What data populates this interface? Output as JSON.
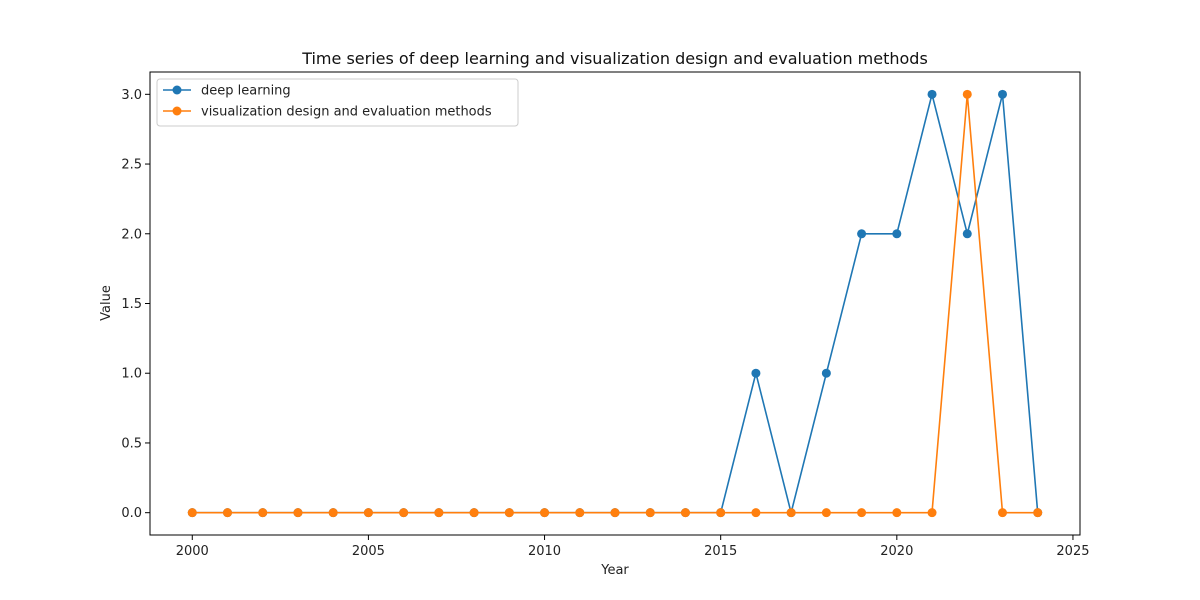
{
  "chart_data": {
    "type": "line",
    "title": "Time series of deep learning and visualization design and evaluation methods",
    "xlabel": "Year",
    "ylabel": "Value",
    "x": [
      2000,
      2001,
      2002,
      2003,
      2004,
      2005,
      2006,
      2007,
      2008,
      2009,
      2010,
      2011,
      2012,
      2013,
      2014,
      2015,
      2016,
      2017,
      2018,
      2019,
      2020,
      2021,
      2022,
      2023,
      2024
    ],
    "xlim": [
      1998.8,
      2025.2
    ],
    "ylim": [
      -0.16,
      3.16
    ],
    "xticks": [
      2000,
      2005,
      2010,
      2015,
      2020,
      2025
    ],
    "yticks": [
      0.0,
      0.5,
      1.0,
      1.5,
      2.0,
      2.5,
      3.0
    ],
    "xtick_labels": [
      "2000",
      "2005",
      "2010",
      "2015",
      "2020",
      "2025"
    ],
    "ytick_labels": [
      "0.0",
      "0.5",
      "1.0",
      "1.5",
      "2.0",
      "2.5",
      "3.0"
    ],
    "grid": false,
    "legend_position": "top-left",
    "series": [
      {
        "name": "deep learning",
        "color": "#1f77b4",
        "marker": "circle",
        "values": [
          0,
          0,
          0,
          0,
          0,
          0,
          0,
          0,
          0,
          0,
          0,
          0,
          0,
          0,
          0,
          0,
          1,
          0,
          1,
          2,
          2,
          3,
          2,
          3,
          0
        ]
      },
      {
        "name": "visualization design and evaluation methods",
        "color": "#ff7f0e",
        "marker": "circle",
        "values": [
          0,
          0,
          0,
          0,
          0,
          0,
          0,
          0,
          0,
          0,
          0,
          0,
          0,
          0,
          0,
          0,
          0,
          0,
          0,
          0,
          0,
          0,
          3,
          0,
          0
        ]
      }
    ]
  }
}
